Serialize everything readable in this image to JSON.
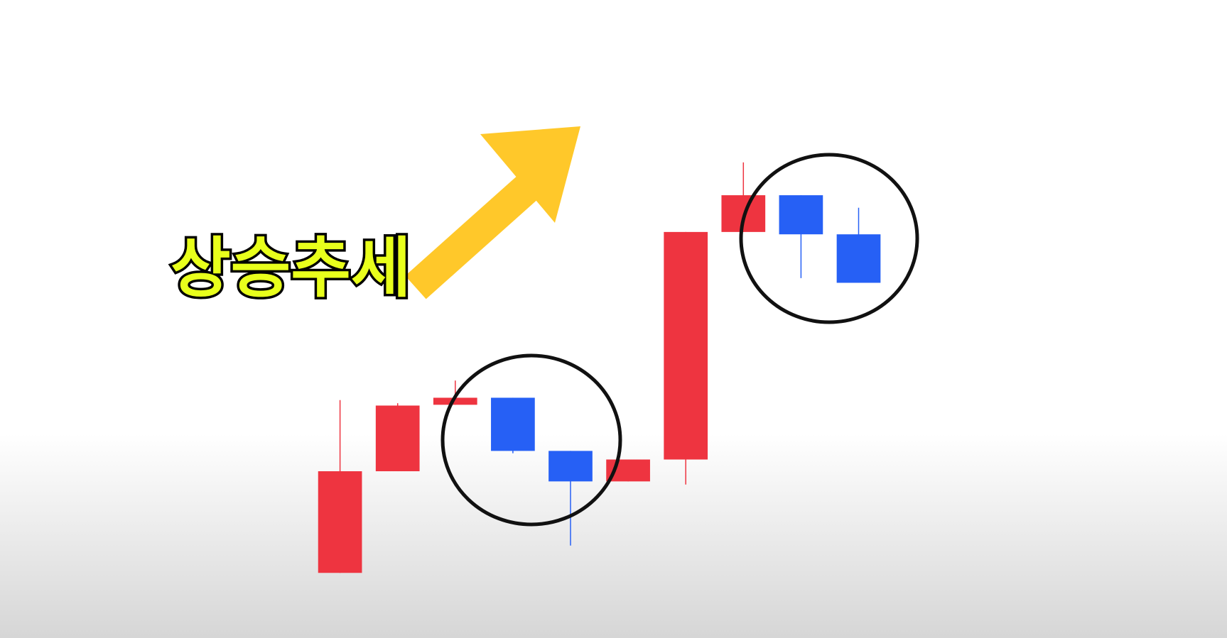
{
  "chart_data": {
    "type": "candlestick",
    "title": "상승추세",
    "open": [
      2.7,
      15.7,
      24.2,
      25.1,
      18.3,
      14.4,
      17.2,
      46.3,
      51.0,
      46.0
    ],
    "high": [
      24.8,
      24.4,
      27.3,
      25.1,
      18.3,
      17.2,
      46.3,
      55.2,
      51.0,
      49.4
    ],
    "low": [
      2.7,
      15.7,
      24.2,
      18.0,
      6.2,
      14.4,
      14.0,
      46.3,
      40.4,
      39.8
    ],
    "close": [
      15.7,
      24.1,
      25.1,
      18.3,
      14.4,
      17.2,
      46.3,
      51.0,
      46.0,
      39.8
    ],
    "up_color": "#ee3440",
    "down_color": "#2660f5",
    "ylim": [
      0,
      56
    ]
  }
}
